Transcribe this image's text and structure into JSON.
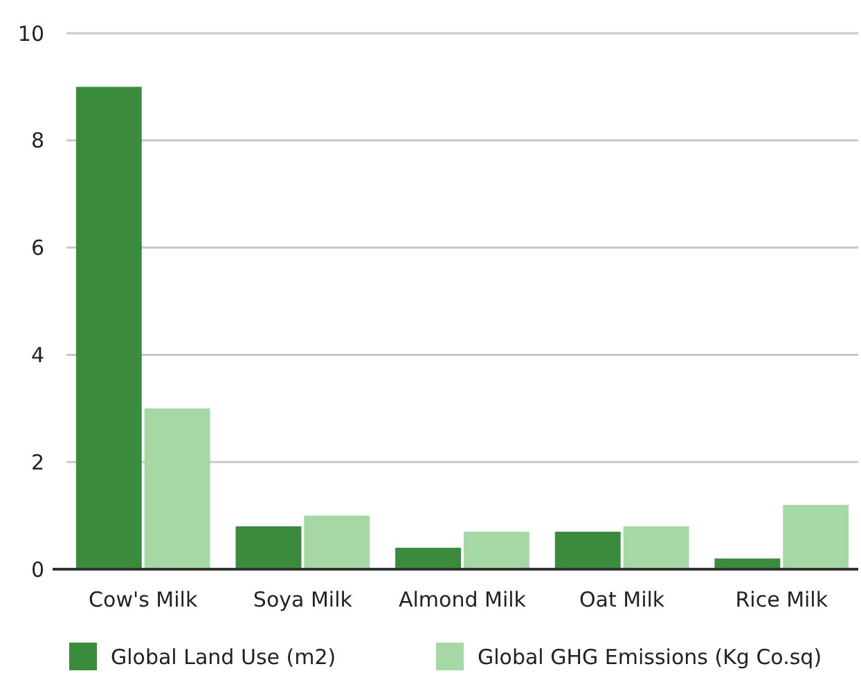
{
  "chart_data": {
    "type": "bar",
    "categories": [
      "Cow's Milk",
      "Soya Milk",
      "Almond Milk",
      "Oat Milk",
      "Rice Milk"
    ],
    "series": [
      {
        "name": "Global Land Use (m2)",
        "color": "#3a8c3c",
        "values": [
          9,
          0.8,
          0.4,
          0.7,
          0.2
        ]
      },
      {
        "name": "Global GHG Emissions (Kg Co.sq)",
        "color": "#a6d8a6",
        "values": [
          3,
          1,
          0.7,
          0.8,
          1.2
        ]
      }
    ],
    "ylim": [
      0,
      10
    ],
    "yticks": [
      0,
      2,
      4,
      6,
      8,
      10
    ],
    "grid": "y",
    "legend": "bottom"
  }
}
